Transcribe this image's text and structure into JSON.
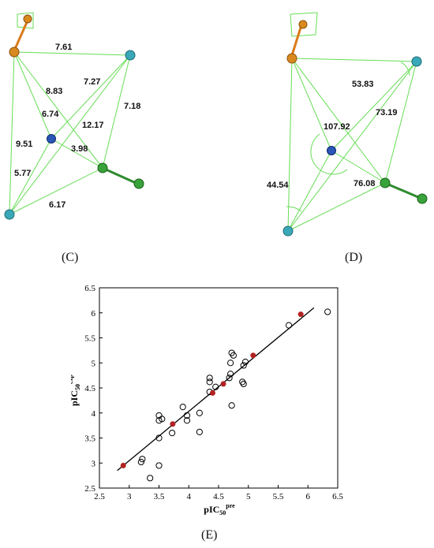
{
  "panel_c": {
    "label": "(C)",
    "distances": [
      "7.61",
      "8.83",
      "7.27",
      "6.74",
      "7.18",
      "12.17",
      "9.51",
      "3.98",
      "5.77",
      "6.17"
    ]
  },
  "panel_d": {
    "label": "(D)",
    "angles": [
      "53.83",
      "73.19",
      "107.92",
      "44.54",
      "76.08"
    ]
  },
  "panel_e": {
    "label": "(E)"
  },
  "chart_data": {
    "type": "scatter",
    "xlabel_main": "pIC",
    "xlabel_sub": "50",
    "xlabel_sup": "pre",
    "ylabel_main": "pIC",
    "ylabel_sub": "50",
    "ylabel_sup": "exp",
    "xlim": [
      2.5,
      6.5
    ],
    "ylim": [
      2.5,
      6.5
    ],
    "xticks": [
      "2.5",
      "3",
      "3.5",
      "4",
      "4.5",
      "5",
      "5.5",
      "6",
      "6.5"
    ],
    "yticks": [
      "2.5",
      "3",
      "3.5",
      "4",
      "4.5",
      "5",
      "5.5",
      "6",
      "6.5"
    ],
    "grid": false,
    "fit_line": {
      "x": [
        2.8,
        6.1
      ],
      "y": [
        2.85,
        6.1
      ]
    },
    "series": [
      {
        "marker": "open-circle",
        "color": "#000000",
        "points": [
          [
            3.35,
            2.7
          ],
          [
            3.5,
            2.95
          ],
          [
            3.2,
            3.02
          ],
          [
            3.22,
            3.08
          ],
          [
            3.5,
            3.5
          ],
          [
            3.72,
            3.6
          ],
          [
            4.18,
            3.62
          ],
          [
            3.5,
            3.85
          ],
          [
            3.5,
            3.95
          ],
          [
            3.55,
            3.88
          ],
          [
            3.97,
            3.85
          ],
          [
            3.97,
            3.95
          ],
          [
            3.9,
            4.12
          ],
          [
            4.18,
            4.0
          ],
          [
            4.72,
            4.15
          ],
          [
            4.35,
            4.42
          ],
          [
            4.45,
            4.52
          ],
          [
            4.35,
            4.62
          ],
          [
            4.35,
            4.7
          ],
          [
            4.68,
            4.7
          ],
          [
            4.7,
            4.78
          ],
          [
            4.7,
            5.0
          ],
          [
            4.72,
            5.2
          ],
          [
            4.75,
            5.15
          ],
          [
            4.9,
            4.62
          ],
          [
            4.92,
            4.58
          ],
          [
            4.92,
            4.95
          ],
          [
            4.95,
            5.02
          ],
          [
            5.68,
            5.75
          ],
          [
            6.33,
            6.02
          ]
        ]
      },
      {
        "marker": "filled-circle",
        "color": "#b22222",
        "points": [
          [
            2.9,
            2.95
          ],
          [
            3.73,
            3.78
          ],
          [
            4.4,
            4.4
          ],
          [
            4.58,
            4.58
          ],
          [
            5.08,
            5.15
          ],
          [
            5.88,
            5.97
          ]
        ]
      }
    ]
  }
}
